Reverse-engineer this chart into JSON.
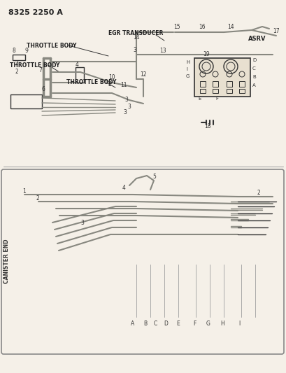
{
  "title": "8325 2250 A",
  "bg_color": "#f5f0e8",
  "line_color": "#888880",
  "dark_color": "#333333",
  "label_color": "#222222",
  "fig_width": 4.1,
  "fig_height": 5.33,
  "dpi": 100,
  "upper_labels": {
    "egr_transducer": "EGR TRANSDUCER",
    "throttle_body_top": "THROTTLE BODY",
    "throttle_body_mid": "THROTTLE BODY",
    "throttle_body_bot": "THROTTLE BODY",
    "asrv": "ASRV",
    "canister_end": "CANISTER END"
  },
  "part_numbers": [
    "1",
    "2",
    "3",
    "4",
    "5",
    "6",
    "7",
    "8",
    "9",
    "10",
    "11",
    "12",
    "13",
    "14",
    "15",
    "16",
    "17",
    "18",
    "19"
  ],
  "connector_letters": [
    "A",
    "B",
    "C",
    "D",
    "E",
    "F",
    "G",
    "H",
    "I"
  ]
}
